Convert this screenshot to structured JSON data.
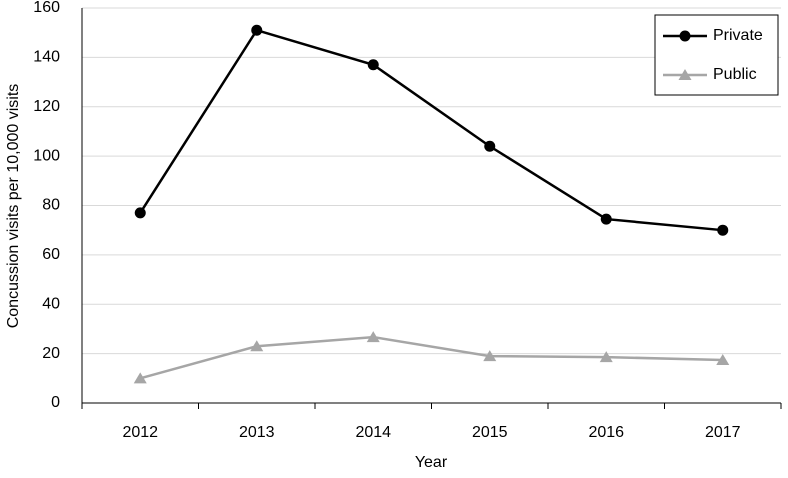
{
  "chart_data": {
    "type": "line",
    "x_label": "Year",
    "y_label": "Concussion visits per 10,000 visits",
    "categories": [
      "2012",
      "2013",
      "2014",
      "2015",
      "2016",
      "2017"
    ],
    "series": [
      {
        "name": "Private",
        "color": "#000000",
        "marker": "circle",
        "values": [
          77,
          151,
          137,
          104,
          74.5,
          70
        ]
      },
      {
        "name": "Public",
        "color": "#a6a6a6",
        "marker": "triangle",
        "values": [
          10,
          23,
          26.7,
          19,
          18.6,
          17.4
        ]
      }
    ],
    "ylim": [
      0,
      160
    ],
    "yticks": [
      0,
      20,
      40,
      60,
      80,
      100,
      120,
      140,
      160
    ],
    "grid": true,
    "legend": "top-right"
  }
}
